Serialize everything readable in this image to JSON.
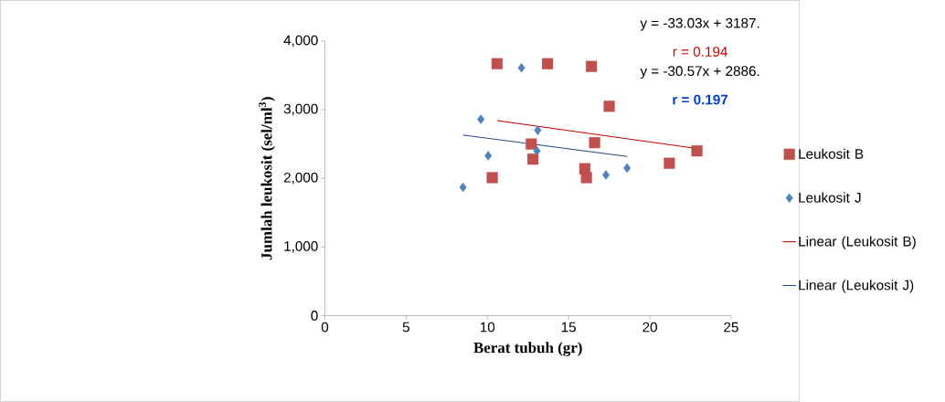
{
  "chart_data": {
    "type": "scatter",
    "xlabel": "Berat tubuh (gr)",
    "ylabel": "Jumlah leukosit (sel/ml$^{3}$)",
    "xlim": [
      0,
      25
    ],
    "xticks": [
      0,
      5,
      10,
      15,
      20,
      25
    ],
    "ylim": [
      0,
      4000
    ],
    "yticks": [
      {
        "value": 0,
        "label": "0"
      },
      {
        "value": 1000,
        "label": "1,000"
      },
      {
        "value": 2000,
        "label": "2,000"
      },
      {
        "value": 3000,
        "label": "3,000"
      },
      {
        "value": 4000,
        "label": "4,000"
      }
    ],
    "legend": "right",
    "grid": false,
    "annotations": [
      "y = -33.03x + 3187.",
      "r = 0.194",
      "y = -30.57x + 2886.",
      "r = 0.197"
    ],
    "series": [
      {
        "name": "Leukosit B",
        "type": "scatter",
        "marker": "square",
        "color": "#c0504d",
        "x": [
          10.6,
          13.7,
          16.4,
          17.5,
          12.7,
          16.6,
          12.8,
          10.3,
          16.0,
          16.1,
          21.2,
          22.9
        ],
        "values": [
          3670,
          3670,
          3630,
          3050,
          2500,
          2520,
          2280,
          2010,
          2140,
          2010,
          2220,
          2400
        ]
      },
      {
        "name": "Leukosit J",
        "type": "scatter",
        "marker": "diamond",
        "color": "#4f81bd",
        "x": [
          12.1,
          9.6,
          13.1,
          13.05,
          10.05,
          8.5,
          17.3,
          18.6
        ],
        "values": [
          3610,
          2860,
          2700,
          2400,
          2330,
          1870,
          2050,
          2150
        ]
      },
      {
        "name": "Linear (Leukosit B)",
        "type": "line",
        "marker": "none",
        "color": "#c00000",
        "x": [
          10.6,
          23.0
        ],
        "values": [
          2840,
          2430
        ]
      },
      {
        "name": "Linear (Leukosit J)",
        "type": "line",
        "marker": "none",
        "color": "#1f497d",
        "x": [
          8.5,
          18.6
        ],
        "values": [
          2630,
          2320
        ]
      }
    ]
  }
}
